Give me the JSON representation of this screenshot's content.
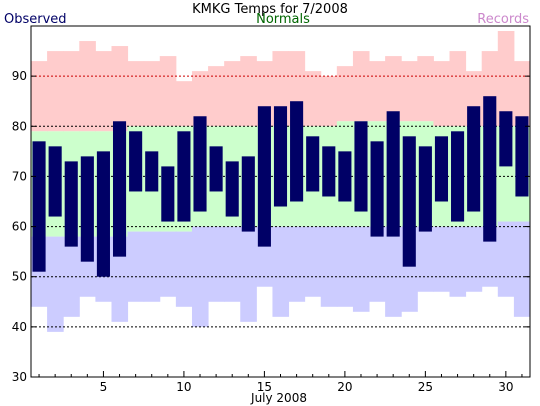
{
  "chart_data": {
    "type": "bar",
    "title": "KMKG Temps for 7/2008",
    "xlabel": "July 2008",
    "ylabel": "",
    "ylim": [
      30,
      100
    ],
    "grid": true,
    "legend": {
      "observed": "Observed",
      "normals": "Normals",
      "records": "Records"
    },
    "colors": {
      "observed": "#000066",
      "normals_label": "#006600",
      "records_label": "#cc88cc",
      "record_band": "#ffcccc",
      "normal_band": "#ccffcc",
      "low_band": "#ccccff",
      "record_grid": "#cc0000",
      "normal_grid": "#000000",
      "low_grid": "#000000"
    },
    "y_ticks": [
      30,
      40,
      50,
      60,
      70,
      80,
      90
    ],
    "x_ticks": [
      5,
      10,
      15,
      20,
      25,
      30
    ],
    "days": [
      1,
      2,
      3,
      4,
      5,
      6,
      7,
      8,
      9,
      10,
      11,
      12,
      13,
      14,
      15,
      16,
      17,
      18,
      19,
      20,
      21,
      22,
      23,
      24,
      25,
      26,
      27,
      28,
      29,
      30,
      31
    ],
    "observed_high": [
      77,
      76,
      73,
      74,
      75,
      81,
      79,
      75,
      72,
      79,
      82,
      76,
      73,
      74,
      84,
      84,
      85,
      78,
      76,
      75,
      81,
      77,
      83,
      78,
      76,
      78,
      79,
      84,
      86,
      83,
      82
    ],
    "observed_low": [
      51,
      62,
      56,
      53,
      50,
      54,
      67,
      67,
      61,
      61,
      63,
      67,
      62,
      59,
      56,
      64,
      65,
      67,
      66,
      65,
      63,
      58,
      58,
      52,
      59,
      65,
      61,
      63,
      57,
      72,
      66
    ],
    "normal_high": [
      79,
      79,
      79,
      79,
      79,
      79,
      80,
      80,
      80,
      80,
      80,
      80,
      80,
      80,
      80,
      80,
      80,
      80,
      80,
      81,
      81,
      81,
      81,
      81,
      81,
      80,
      80,
      80,
      80,
      80,
      80
    ],
    "normal_low": [
      58,
      58,
      58,
      58,
      58,
      58,
      59,
      59,
      59,
      59,
      60,
      60,
      60,
      60,
      60,
      60,
      60,
      60,
      60,
      60,
      60,
      60,
      60,
      60,
      60,
      60,
      60,
      60,
      60,
      61,
      61
    ],
    "record_high": [
      93,
      95,
      95,
      97,
      95,
      96,
      93,
      93,
      94,
      89,
      91,
      92,
      93,
      94,
      93,
      95,
      95,
      91,
      90,
      92,
      95,
      93,
      94,
      93,
      94,
      93,
      95,
      91,
      95,
      99,
      93
    ],
    "record_low": [
      44,
      39,
      42,
      46,
      45,
      41,
      45,
      45,
      46,
      44,
      40,
      45,
      45,
      41,
      48,
      42,
      45,
      46,
      44,
      44,
      43,
      45,
      42,
      43,
      47,
      47,
      46,
      47,
      48,
      46,
      42
    ]
  }
}
